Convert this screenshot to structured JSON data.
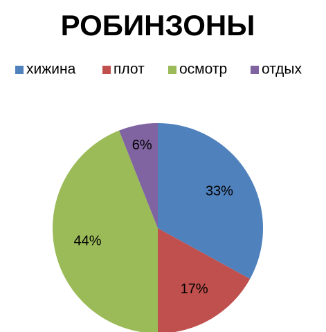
{
  "chart_data": {
    "type": "pie",
    "title": "РОБИНЗОНЫ",
    "categories": [
      "хижина",
      "плот",
      "осмотр",
      "отдых"
    ],
    "values": [
      33,
      17,
      44,
      6
    ],
    "value_labels": [
      "33%",
      "17%",
      "44%",
      "6%"
    ],
    "colors": [
      "#4f81bd",
      "#c0504d",
      "#9bbb59",
      "#8064a2"
    ],
    "legend": "top"
  }
}
